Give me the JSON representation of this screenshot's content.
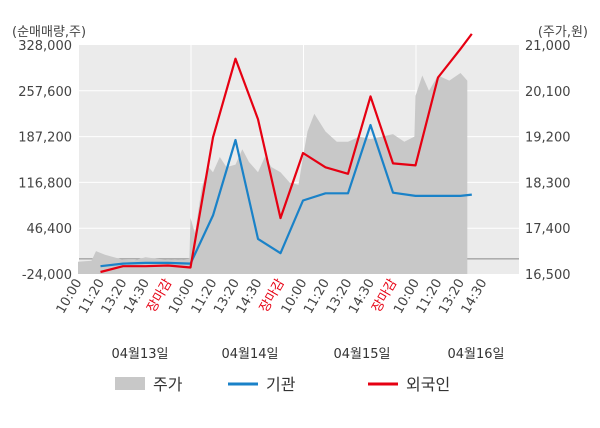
{
  "chart_data": {
    "type": "line",
    "left_unit": "(순매매량,주)",
    "right_unit": "(주가,원)",
    "left_ticks": [
      "328,000",
      "257,600",
      "187,200",
      "116,800",
      "46,400",
      "-24,000"
    ],
    "left_ylim": [
      -24000,
      328000
    ],
    "right_ticks": [
      "21,000",
      "20,100",
      "19,200",
      "18,300",
      "17,400",
      "16,500"
    ],
    "right_ylim": [
      16500,
      21000
    ],
    "x_tick_labels": [
      "10:00",
      "11:20",
      "13:20",
      "14:30",
      "장마감",
      "10:00",
      "11:20",
      "13:20",
      "14:30",
      "장마감",
      "10:00",
      "11:20",
      "13:20",
      "14:30",
      "장마감",
      "10:00",
      "11:20",
      "13:20",
      "14:30"
    ],
    "close_label": "장마감",
    "dates": [
      "04월13일",
      "04월14일",
      "04월15일",
      "04월16일"
    ],
    "legend": [
      {
        "label": "주가",
        "color": "#c8c8c8",
        "kind": "area"
      },
      {
        "label": "기관",
        "color": "#1a82c8",
        "kind": "line"
      },
      {
        "label": "외국인",
        "color": "#e60012",
        "kind": "line"
      }
    ],
    "series": [
      {
        "name": "기관",
        "color": "#1a82c8",
        "axis": "left",
        "x": [
          1.0,
          2.0,
          3.0,
          4.0,
          5.0,
          6.0,
          7.0,
          8.0,
          9.0,
          10.0,
          11.0,
          12.0,
          13.0,
          14.0,
          15.0,
          16.0,
          17.0,
          17.5
        ],
        "values": [
          -12000,
          -8000,
          -7000,
          -7000,
          -8000,
          66000,
          182000,
          30000,
          8000,
          89000,
          100000,
          100000,
          205000,
          101000,
          96000,
          96000,
          96000,
          98000
        ]
      },
      {
        "name": "외국인",
        "color": "#e60012",
        "axis": "left",
        "x": [
          1.0,
          2.0,
          3.0,
          4.0,
          5.0,
          6.0,
          7.0,
          8.0,
          9.0,
          10.0,
          11.0,
          12.0,
          13.0,
          14.0,
          15.0,
          16.0,
          17.0,
          17.5
        ],
        "values": [
          -21000,
          -12000,
          -12000,
          -11000,
          -14000,
          186000,
          307000,
          214000,
          62000,
          162000,
          140000,
          130000,
          249000,
          146000,
          143000,
          278000,
          322000,
          345000
        ]
      },
      {
        "name": "주가",
        "color": "#c8c8c8",
        "axis": "right",
        "x": [
          0.0,
          0.6,
          0.8,
          1.2,
          1.6,
          2.0,
          2.5,
          3.0,
          3.5,
          4.0,
          4.3,
          4.6,
          4.95,
          5.0,
          5.2,
          5.5,
          5.8,
          6.0,
          6.3,
          6.6,
          7.0,
          7.3,
          7.6,
          8.0,
          8.3,
          8.6,
          9.0,
          9.4,
          9.8,
          10.0,
          10.2,
          10.5,
          11.0,
          11.5,
          12.0,
          12.5,
          13.0,
          13.5,
          14.0,
          14.5,
          14.95,
          15.0,
          15.3,
          15.6,
          16.0,
          16.5,
          17.0,
          17.3
        ],
        "values": [
          16740,
          16760,
          16950,
          16880,
          16830,
          16780,
          16770,
          16830,
          16800,
          16780,
          16790,
          16780,
          16800,
          17600,
          17300,
          18200,
          18600,
          18500,
          18800,
          18600,
          18650,
          18950,
          18700,
          18500,
          18800,
          18600,
          18500,
          18300,
          18250,
          18800,
          19300,
          19650,
          19300,
          19100,
          19100,
          19200,
          19150,
          19200,
          19250,
          19100,
          19200,
          20000,
          20400,
          20100,
          20400,
          20300,
          20450,
          20300
        ]
      }
    ]
  }
}
